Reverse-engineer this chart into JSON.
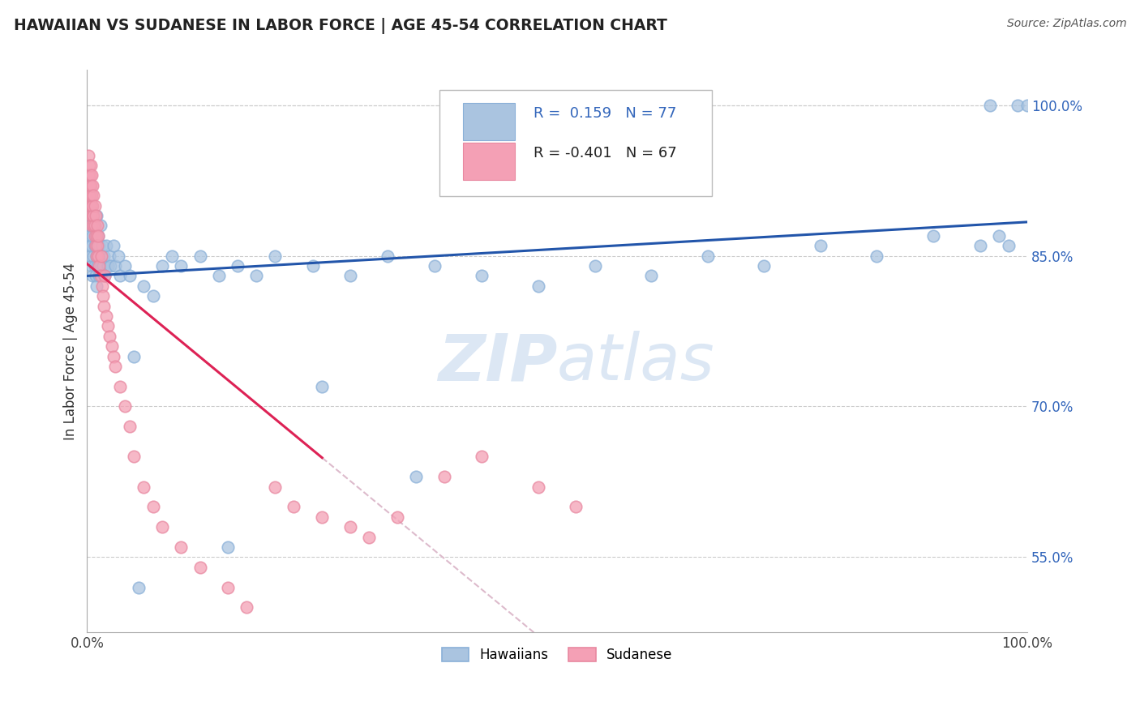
{
  "title": "HAWAIIAN VS SUDANESE IN LABOR FORCE | AGE 45-54 CORRELATION CHART",
  "source_text": "Source: ZipAtlas.com",
  "ylabel": "In Labor Force | Age 45-54",
  "R_hawaiian": 0.159,
  "N_hawaiian": 77,
  "R_sudanese": -0.401,
  "N_sudanese": 67,
  "hawaiian_color": "#aac4e0",
  "sudanese_color": "#f4a0b5",
  "hawaiian_line_color": "#2255aa",
  "sudanese_line_color": "#dd2255",
  "sudanese_dash_color": "#ddbbcc",
  "watermark_color": "#c5d8ee",
  "xlim": [
    0.0,
    1.0
  ],
  "ylim": [
    0.475,
    1.035
  ],
  "yticks": [
    0.55,
    0.7,
    0.85,
    1.0
  ],
  "ytick_labels": [
    "55.0%",
    "70.0%",
    "85.0%",
    "100.0%"
  ],
  "grid_color": "#cccccc",
  "hawaiian_x": [
    0.002,
    0.003,
    0.003,
    0.004,
    0.004,
    0.005,
    0.005,
    0.005,
    0.006,
    0.006,
    0.007,
    0.007,
    0.008,
    0.008,
    0.009,
    0.009,
    0.01,
    0.01,
    0.01,
    0.011,
    0.011,
    0.012,
    0.012,
    0.013,
    0.013,
    0.014,
    0.014,
    0.015,
    0.015,
    0.016,
    0.017,
    0.018,
    0.019,
    0.02,
    0.022,
    0.024,
    0.025,
    0.028,
    0.03,
    0.033,
    0.035,
    0.04,
    0.045,
    0.05,
    0.06,
    0.07,
    0.08,
    0.09,
    0.1,
    0.12,
    0.14,
    0.16,
    0.18,
    0.2,
    0.24,
    0.28,
    0.32,
    0.37,
    0.42,
    0.48,
    0.54,
    0.6,
    0.66,
    0.72,
    0.78,
    0.84,
    0.9,
    0.95,
    0.96,
    0.97,
    0.98,
    0.99,
    1.0,
    0.35,
    0.25,
    0.15,
    0.055
  ],
  "hawaiian_y": [
    0.87,
    0.86,
    0.88,
    0.85,
    0.89,
    0.84,
    0.86,
    0.9,
    0.83,
    0.87,
    0.85,
    0.88,
    0.84,
    0.86,
    0.83,
    0.87,
    0.85,
    0.89,
    0.82,
    0.86,
    0.84,
    0.87,
    0.85,
    0.83,
    0.86,
    0.84,
    0.88,
    0.85,
    0.83,
    0.86,
    0.84,
    0.85,
    0.83,
    0.86,
    0.84,
    0.85,
    0.84,
    0.86,
    0.84,
    0.85,
    0.83,
    0.84,
    0.83,
    0.75,
    0.82,
    0.81,
    0.84,
    0.85,
    0.84,
    0.85,
    0.83,
    0.84,
    0.83,
    0.85,
    0.84,
    0.83,
    0.85,
    0.84,
    0.83,
    0.82,
    0.84,
    0.83,
    0.85,
    0.84,
    0.86,
    0.85,
    0.87,
    0.86,
    1.0,
    0.87,
    0.86,
    1.0,
    1.0,
    0.63,
    0.72,
    0.56,
    0.52
  ],
  "sudanese_x": [
    0.001,
    0.001,
    0.002,
    0.002,
    0.002,
    0.003,
    0.003,
    0.003,
    0.003,
    0.004,
    0.004,
    0.004,
    0.005,
    0.005,
    0.005,
    0.005,
    0.006,
    0.006,
    0.006,
    0.007,
    0.007,
    0.007,
    0.008,
    0.008,
    0.008,
    0.009,
    0.009,
    0.01,
    0.01,
    0.011,
    0.011,
    0.012,
    0.012,
    0.013,
    0.014,
    0.015,
    0.016,
    0.017,
    0.018,
    0.019,
    0.02,
    0.022,
    0.024,
    0.026,
    0.028,
    0.03,
    0.035,
    0.04,
    0.045,
    0.05,
    0.06,
    0.07,
    0.08,
    0.1,
    0.12,
    0.15,
    0.17,
    0.2,
    0.22,
    0.25,
    0.28,
    0.3,
    0.33,
    0.38,
    0.42,
    0.48,
    0.52
  ],
  "sudanese_y": [
    0.93,
    0.95,
    0.91,
    0.94,
    0.92,
    0.9,
    0.93,
    0.92,
    0.91,
    0.89,
    0.92,
    0.94,
    0.88,
    0.9,
    0.93,
    0.91,
    0.89,
    0.92,
    0.9,
    0.88,
    0.91,
    0.89,
    0.87,
    0.9,
    0.88,
    0.86,
    0.89,
    0.87,
    0.85,
    0.88,
    0.86,
    0.85,
    0.87,
    0.84,
    0.83,
    0.85,
    0.82,
    0.81,
    0.8,
    0.83,
    0.79,
    0.78,
    0.77,
    0.76,
    0.75,
    0.74,
    0.72,
    0.7,
    0.68,
    0.65,
    0.62,
    0.6,
    0.58,
    0.56,
    0.54,
    0.52,
    0.5,
    0.62,
    0.6,
    0.59,
    0.58,
    0.57,
    0.59,
    0.63,
    0.65,
    0.62,
    0.6
  ]
}
